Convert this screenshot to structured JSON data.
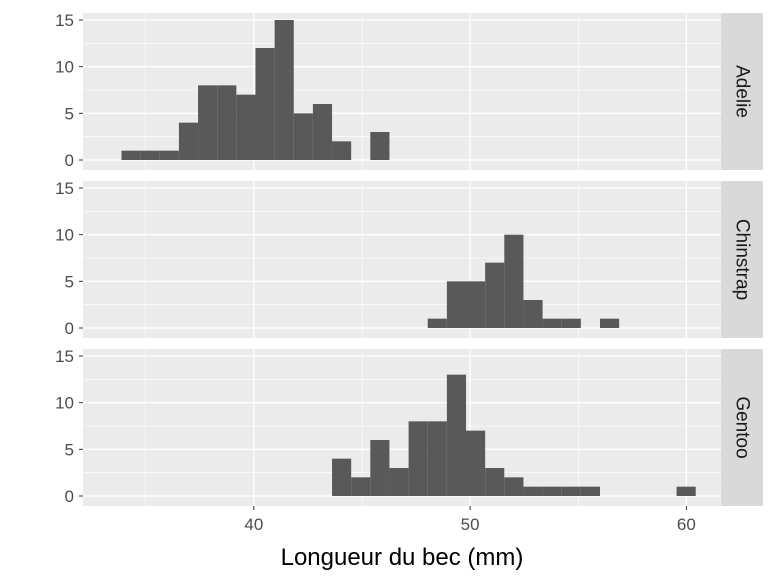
{
  "chart_data": {
    "type": "bar",
    "subtype": "histogram-faceted",
    "xlabel": "Longueur du bec (mm)",
    "ylabel": "",
    "xlim": [
      32.1,
      61.6
    ],
    "ylim": [
      0,
      15.6
    ],
    "x_ticks": [
      40,
      50,
      60
    ],
    "y_ticks": [
      0,
      5,
      10,
      15
    ],
    "bin_width": 0.885,
    "bin_start": 33.88,
    "bar_color": "#595959",
    "panel_bg": "#ebebeb",
    "strip_bg": "#d9d9d9",
    "grid": true,
    "facets": [
      {
        "label": "Adelie",
        "counts": [
          1,
          1,
          1,
          4,
          8,
          8,
          7,
          12,
          15,
          5,
          6,
          2,
          0,
          3,
          0,
          0,
          0,
          0,
          0,
          0,
          0,
          0,
          0,
          0,
          0,
          0,
          0,
          0,
          0,
          0
        ]
      },
      {
        "label": "Chinstrap",
        "counts": [
          0,
          0,
          0,
          0,
          0,
          0,
          0,
          0,
          0,
          0,
          0,
          0,
          0,
          0,
          0,
          0,
          1,
          5,
          5,
          7,
          10,
          3,
          1,
          1,
          0,
          1,
          0,
          0,
          0,
          0
        ]
      },
      {
        "label": "Gentoo",
        "counts": [
          0,
          0,
          0,
          0,
          0,
          0,
          0,
          0,
          0,
          0,
          0,
          4,
          2,
          6,
          3,
          8,
          8,
          13,
          7,
          3,
          2,
          1,
          1,
          1,
          1,
          0,
          0,
          0,
          0,
          1
        ]
      }
    ]
  }
}
